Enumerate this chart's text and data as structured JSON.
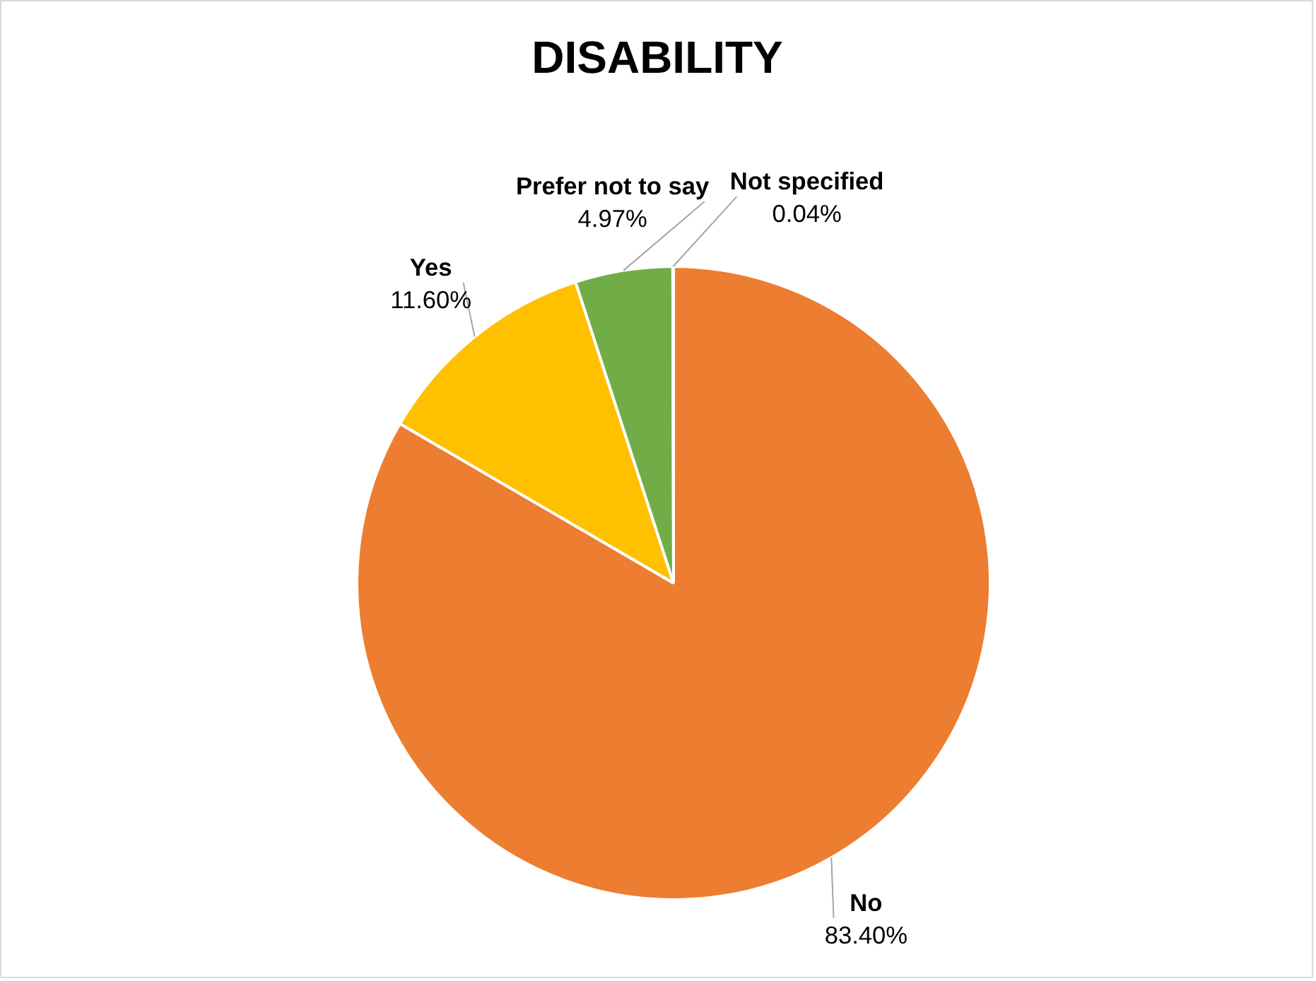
{
  "chart_data": {
    "type": "pie",
    "title": "DISABILITY",
    "categories": [
      "No",
      "Yes",
      "Prefer not to say",
      "Not specified"
    ],
    "values": [
      83.4,
      11.6,
      4.97,
      0.04
    ],
    "colors": [
      "#ed7d31",
      "#ffc000",
      "#70ad47",
      "#4472c4"
    ],
    "value_labels": [
      "83.40%",
      "11.60%",
      "4.97%",
      "0.04%"
    ]
  }
}
